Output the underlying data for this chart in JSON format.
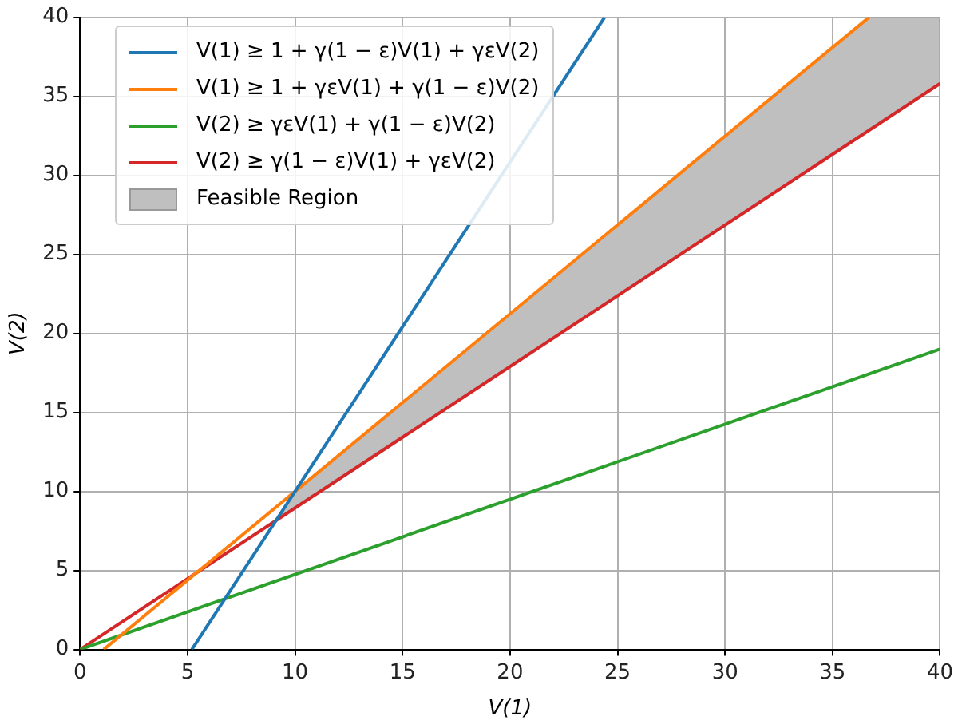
{
  "chart_data": {
    "type": "line",
    "xlabel": "V(1)",
    "ylabel": "V(2)",
    "xlim": [
      0,
      40
    ],
    "ylim": [
      0,
      40
    ],
    "xticks": [
      0,
      5,
      10,
      15,
      20,
      25,
      30,
      35,
      40
    ],
    "yticks": [
      0,
      5,
      10,
      15,
      20,
      25,
      30,
      35,
      40
    ],
    "grid": true,
    "legend": "top left",
    "marker": "none",
    "line_style": "solid",
    "series": [
      {
        "name": "V(1) ≥ 1 + γ(1 − ε)V(1) + γεV(2)",
        "color": "#1f77b4",
        "x": [
          5.2,
          24.4
        ],
        "values": [
          0,
          40
        ]
      },
      {
        "name": "V(1) ≥ 1 + γεV(1) + γ(1 − ε)V(2)",
        "color": "#ff7f0e",
        "x": [
          1.1,
          36.7
        ],
        "values": [
          0,
          40
        ]
      },
      {
        "name": "V(2) ≥ γεV(1) + γ(1 − ε)V(2)",
        "color": "#2ca02c",
        "x": [
          0,
          40
        ],
        "values": [
          0,
          19
        ]
      },
      {
        "name": "V(2) ≥ γ(1 − ε)V(1) + γεV(2)",
        "color": "#d62728",
        "x": [
          0,
          40
        ],
        "values": [
          0,
          35.8
        ]
      },
      {
        "name": "Feasible Region",
        "type": "area",
        "color": "#bfbfbf",
        "x": [
          9.2,
          10,
          36.7,
          40,
          40,
          9.2
        ],
        "values": [
          8.3,
          10,
          40,
          40,
          35.8,
          8.3
        ]
      }
    ]
  }
}
